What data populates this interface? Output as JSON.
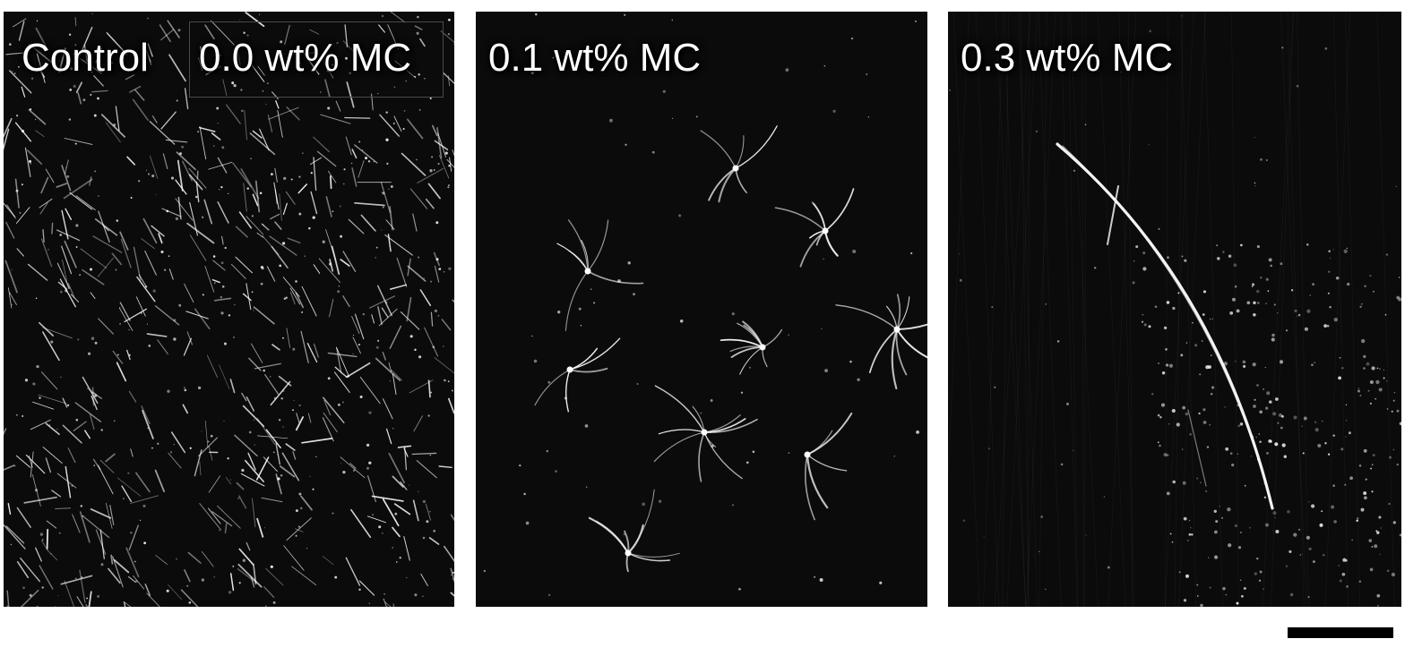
{
  "figure": {
    "panels": [
      {
        "id": "control",
        "labels": [
          "Control",
          "0.0 wt% MC"
        ]
      },
      {
        "id": "mc-0-1",
        "labels": [
          "0.1 wt% MC"
        ]
      },
      {
        "id": "mc-0-3",
        "labels": [
          "0.3 wt% MC"
        ]
      }
    ],
    "scale_bar": {
      "color": "#000000"
    },
    "colors": {
      "background": "#ffffff",
      "panel": "#0b0b0b",
      "filament": "#ffffff"
    }
  }
}
